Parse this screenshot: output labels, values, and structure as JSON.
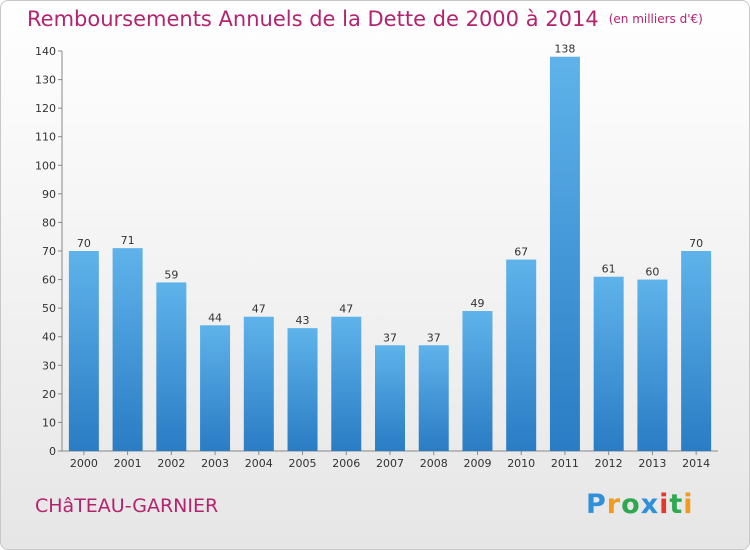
{
  "chart_data": {
    "type": "bar",
    "title": "Remboursements Annuels de la Dette de 2000 à 2014",
    "subtitle": "(en milliers d'€)",
    "xlabel": "",
    "ylabel": "",
    "categories": [
      "2000",
      "2001",
      "2002",
      "2003",
      "2004",
      "2005",
      "2006",
      "2007",
      "2008",
      "2009",
      "2010",
      "2011",
      "2012",
      "2013",
      "2014"
    ],
    "values": [
      70,
      71,
      59,
      44,
      47,
      43,
      47,
      37,
      37,
      49,
      67,
      138,
      61,
      60,
      70
    ],
    "ylim": [
      0,
      140
    ],
    "yticks": [
      0,
      10,
      20,
      30,
      40,
      50,
      60,
      70,
      80,
      90,
      100,
      110,
      120,
      130,
      140
    ],
    "grid": false,
    "bar_color": "#3d97dc"
  },
  "footer": {
    "commune": "CHâTEAU-GARNIER",
    "logo_letters": [
      "P",
      "r",
      "o",
      "x",
      "i",
      "t",
      "i"
    ]
  },
  "colors": {
    "title": "#b4236e",
    "bar_top": "#5fb3ea",
    "bar_bottom": "#2a7cc4"
  }
}
